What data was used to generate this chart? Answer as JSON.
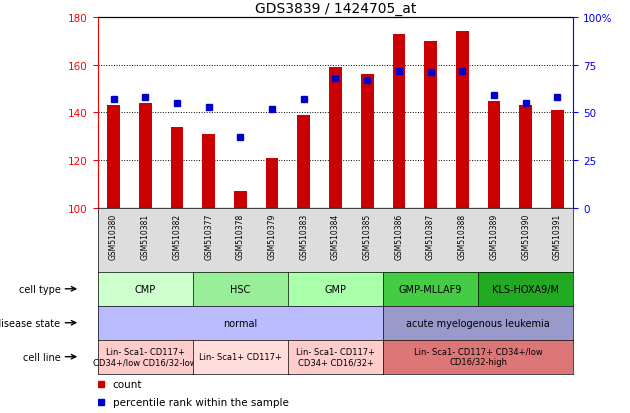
{
  "title": "GDS3839 / 1424705_at",
  "samples": [
    "GSM510380",
    "GSM510381",
    "GSM510382",
    "GSM510377",
    "GSM510378",
    "GSM510379",
    "GSM510383",
    "GSM510384",
    "GSM510385",
    "GSM510386",
    "GSM510387",
    "GSM510388",
    "GSM510389",
    "GSM510390",
    "GSM510391"
  ],
  "counts": [
    143,
    144,
    134,
    131,
    107,
    121,
    139,
    159,
    156,
    173,
    170,
    174,
    145,
    143,
    141
  ],
  "percentiles": [
    57,
    58,
    55,
    53,
    37,
    52,
    57,
    68,
    67,
    72,
    71,
    72,
    59,
    55,
    58
  ],
  "ylim_left": [
    100,
    180
  ],
  "ylim_right": [
    0,
    100
  ],
  "yticks_left": [
    100,
    120,
    140,
    160,
    180
  ],
  "yticks_right": [
    0,
    25,
    50,
    75,
    100
  ],
  "bar_color": "#cc0000",
  "dot_color": "#0000cc",
  "cell_type_groups": [
    {
      "label": "CMP",
      "start": 0,
      "end": 3,
      "color": "#ccffcc"
    },
    {
      "label": "HSC",
      "start": 3,
      "end": 6,
      "color": "#99ee99"
    },
    {
      "label": "GMP",
      "start": 6,
      "end": 9,
      "color": "#aaffaa"
    },
    {
      "label": "GMP-MLLAF9",
      "start": 9,
      "end": 12,
      "color": "#44cc44"
    },
    {
      "label": "KLS-HOXA9/M",
      "start": 12,
      "end": 15,
      "color": "#22aa22"
    }
  ],
  "disease_state_groups": [
    {
      "label": "normal",
      "start": 0,
      "end": 9,
      "color": "#bbbbff"
    },
    {
      "label": "acute myelogenous leukemia",
      "start": 9,
      "end": 15,
      "color": "#9999cc"
    }
  ],
  "cell_line_groups": [
    {
      "label": "Lin- Sca1- CD117+\nCD34+/low CD16/32-low",
      "start": 0,
      "end": 3,
      "color": "#ffcccc"
    },
    {
      "label": "Lin- Sca1+ CD117+",
      "start": 3,
      "end": 6,
      "color": "#ffdddd"
    },
    {
      "label": "Lin- Sca1- CD117+\nCD34+ CD16/32+",
      "start": 6,
      "end": 9,
      "color": "#ffcccc"
    },
    {
      "label": "Lin- Sca1- CD117+ CD34+/low\nCD16/32-high",
      "start": 9,
      "end": 15,
      "color": "#dd7777"
    }
  ]
}
